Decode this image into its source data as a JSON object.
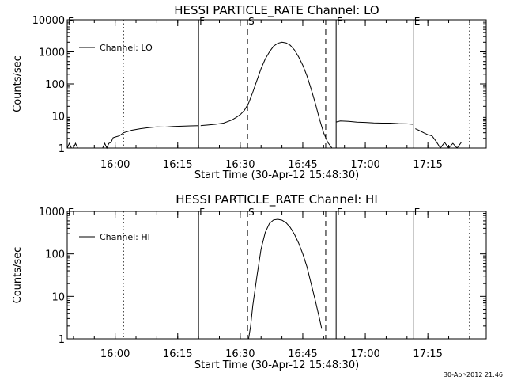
{
  "chart_data": [
    {
      "type": "line",
      "title": "HESSI PARTICLE_RATE Channel: LO",
      "xlabel": "Start Time (30-Apr-12 15:48:30)",
      "ylabel": "Counts/sec",
      "y_scale": "log",
      "ylim": [
        1,
        10000
      ],
      "xlim": [
        "15:48:30",
        "17:29:00"
      ],
      "x_ticks": [
        "16:00",
        "16:15",
        "16:30",
        "16:45",
        "17:00",
        "17:15"
      ],
      "y_ticks": [
        "1",
        "10",
        "100",
        "1000",
        "10000"
      ],
      "grid": false,
      "legend": {
        "position": "top-left",
        "entries": [
          "Channel: LO"
        ]
      },
      "markers": [
        {
          "label": "F",
          "time": "15:48:30",
          "style": "solid"
        },
        {
          "label": "",
          "time": "16:02:00",
          "style": "dotted"
        },
        {
          "label": "F",
          "time": "16:20:00",
          "style": "solid"
        },
        {
          "label": "S",
          "time": "16:31:45",
          "style": "dashed"
        },
        {
          "label": "",
          "time": "16:50:30",
          "style": "dashed"
        },
        {
          "label": "F",
          "time": "16:53:00",
          "style": "solid"
        },
        {
          "label": "E",
          "time": "17:11:30",
          "style": "solid"
        },
        {
          "label": "",
          "time": "17:25:00",
          "style": "dotted"
        }
      ],
      "series": [
        {
          "name": "Channel: LO",
          "segments": [
            {
              "x": [
                "15:48:30",
                "15:49:00",
                "15:49:30",
                "15:50:00",
                "15:50:30",
                "15:51:00",
                "15:52:00"
              ],
              "y": [
                1,
                1.4,
                1,
                1,
                1.4,
                1,
                1
              ]
            },
            {
              "x": [
                "15:57:00",
                "15:57:30",
                "15:58:00",
                "15:58:30",
                "15:59:00",
                "15:59:30",
                "16:00:00",
                "16:01:00",
                "16:02:00",
                "16:04:00",
                "16:06:00",
                "16:08:00",
                "16:10:00",
                "16:12:00",
                "16:14:00",
                "16:16:00",
                "16:18:00",
                "16:20:00"
              ],
              "y": [
                1,
                1.4,
                1,
                1.4,
                1.5,
                2.1,
                2.2,
                2.4,
                3.0,
                3.6,
                4.0,
                4.3,
                4.6,
                4.5,
                4.7,
                4.8,
                4.9,
                5.0
              ]
            },
            {
              "x": [
                "16:20:30",
                "16:22:00",
                "16:24:00",
                "16:26:00",
                "16:28:00",
                "16:29:00",
                "16:30:00",
                "16:31:00",
                "16:32:00",
                "16:33:00",
                "16:34:00",
                "16:35:00",
                "16:36:00",
                "16:37:00",
                "16:38:00",
                "16:39:00",
                "16:40:00",
                "16:41:00",
                "16:42:00",
                "16:43:00",
                "16:44:00",
                "16:45:00",
                "16:46:00",
                "16:47:00",
                "16:48:00",
                "16:49:00",
                "16:50:00",
                "16:51:00",
                "16:52:00"
              ],
              "y": [
                5.0,
                5.2,
                5.5,
                6.0,
                7.5,
                9.0,
                11,
                15,
                25,
                55,
                130,
                300,
                600,
                1000,
                1500,
                1850,
                2000,
                1900,
                1600,
                1150,
                700,
                380,
                180,
                70,
                25,
                8,
                3,
                1.5,
                1
              ]
            },
            {
              "x": [
                "16:53:00",
                "16:54:00",
                "16:56:00",
                "16:58:00",
                "17:00:00",
                "17:02:00",
                "17:04:00",
                "17:06:00",
                "17:08:00",
                "17:10:00",
                "17:11:30"
              ],
              "y": [
                6.5,
                7.0,
                6.8,
                6.4,
                6.3,
                6.1,
                6.0,
                6.0,
                5.8,
                5.7,
                5.5
              ]
            },
            {
              "x": [
                "17:12:00",
                "17:13:00",
                "17:14:00",
                "17:15:00",
                "17:16:00",
                "17:17:00",
                "17:18:00",
                "17:19:00",
                "17:20:00",
                "17:21:00",
                "17:22:00",
                "17:23:00"
              ],
              "y": [
                4.0,
                3.5,
                3.0,
                2.6,
                2.4,
                1.6,
                1,
                1.5,
                1,
                1.4,
                1,
                1.5
              ]
            }
          ]
        }
      ]
    },
    {
      "type": "line",
      "title": "HESSI PARTICLE_RATE Channel: HI",
      "xlabel": "Start Time (30-Apr-12 15:48:30)",
      "ylabel": "Counts/sec",
      "y_scale": "log",
      "ylim": [
        1,
        1000
      ],
      "xlim": [
        "15:48:30",
        "17:29:00"
      ],
      "x_ticks": [
        "16:00",
        "16:15",
        "16:30",
        "16:45",
        "17:00",
        "17:15"
      ],
      "y_ticks": [
        "1",
        "10",
        "100",
        "1000"
      ],
      "grid": false,
      "legend": {
        "position": "top-left",
        "entries": [
          "Channel: HI"
        ]
      },
      "markers": [
        {
          "label": "F",
          "time": "15:48:30",
          "style": "solid"
        },
        {
          "label": "",
          "time": "16:02:00",
          "style": "dotted"
        },
        {
          "label": "F",
          "time": "16:20:00",
          "style": "solid"
        },
        {
          "label": "S",
          "time": "16:31:45",
          "style": "dashed"
        },
        {
          "label": "",
          "time": "16:50:30",
          "style": "dashed"
        },
        {
          "label": "F",
          "time": "16:53:00",
          "style": "solid"
        },
        {
          "label": "E",
          "time": "17:11:30",
          "style": "solid"
        },
        {
          "label": "",
          "time": "17:25:00",
          "style": "dotted"
        }
      ],
      "series": [
        {
          "name": "Channel: HI",
          "segments": [
            {
              "x": [
                "16:32:00",
                "16:32:30",
                "16:33:00",
                "16:34:00",
                "16:35:00",
                "16:36:00",
                "16:37:00",
                "16:38:00",
                "16:39:00",
                "16:40:00",
                "16:41:00",
                "16:42:00",
                "16:43:00",
                "16:44:00",
                "16:45:00",
                "16:46:00",
                "16:47:00",
                "16:48:00",
                "16:49:00",
                "16:49:30"
              ],
              "y": [
                1,
                2,
                6,
                30,
                130,
                320,
                520,
                630,
                650,
                620,
                540,
                420,
                290,
                180,
                100,
                50,
                20,
                8,
                3,
                1.8
              ]
            }
          ]
        }
      ]
    }
  ],
  "timestamp": "30-Apr-2012 21:46"
}
